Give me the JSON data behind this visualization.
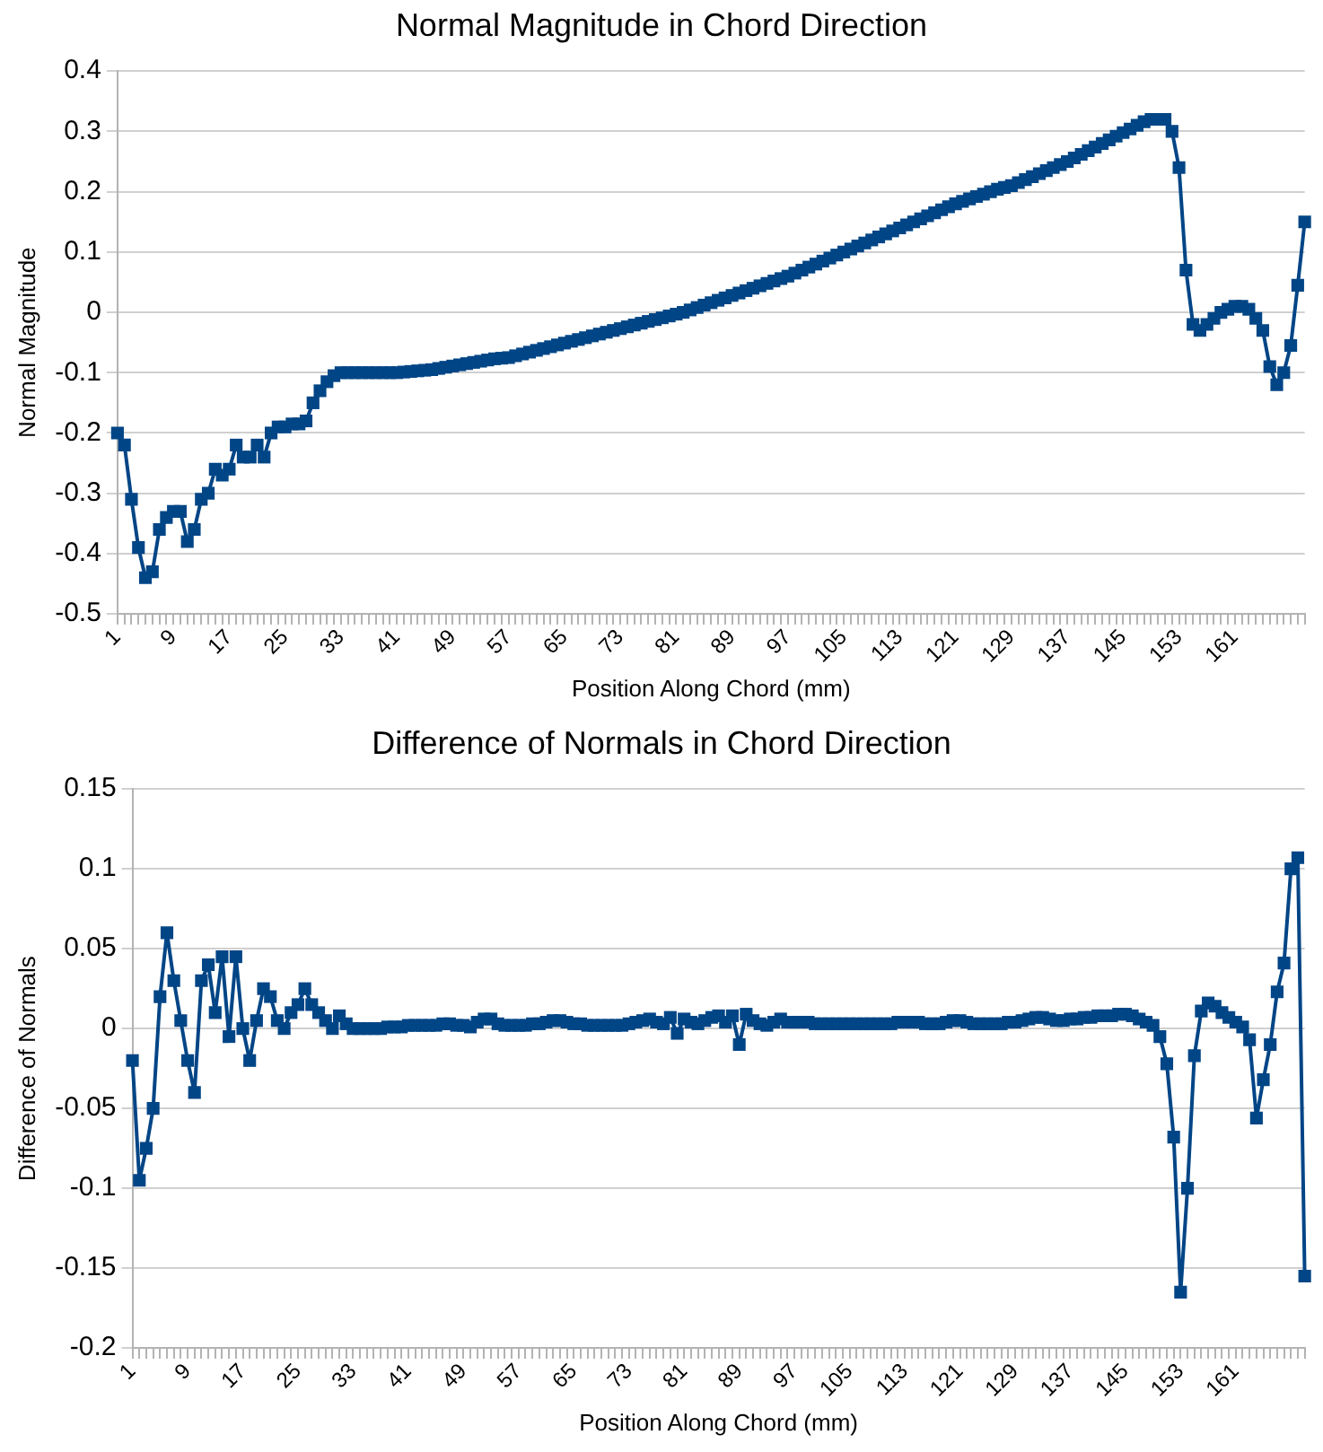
{
  "chart_data": [
    {
      "type": "line",
      "title": "Normal Magnitude in Chord Direction",
      "xlabel": "Position Along Chord (mm)",
      "ylabel": "Normal Magnitude",
      "grid": "y",
      "marker": "square",
      "legend": false,
      "categories": [
        "1",
        null,
        null,
        null,
        null,
        null,
        null,
        null,
        "9",
        null,
        null,
        null,
        null,
        null,
        null,
        null,
        "17",
        null,
        null,
        null,
        null,
        null,
        null,
        null,
        "25",
        null,
        null,
        null,
        null,
        null,
        null,
        null,
        "33",
        null,
        null,
        null,
        null,
        null,
        null,
        null,
        "41",
        null,
        null,
        null,
        null,
        null,
        null,
        null,
        "49",
        null,
        null,
        null,
        null,
        null,
        null,
        null,
        "57",
        null,
        null,
        null,
        null,
        null,
        null,
        null,
        "65",
        null,
        null,
        null,
        null,
        null,
        null,
        null,
        "73",
        null,
        null,
        null,
        null,
        null,
        null,
        null,
        "81",
        null,
        null,
        null,
        null,
        null,
        null,
        null,
        "89",
        null,
        null,
        null,
        null,
        null,
        null,
        null,
        "97",
        null,
        null,
        null,
        null,
        null,
        null,
        null,
        "105",
        null,
        null,
        null,
        null,
        null,
        null,
        null,
        "113",
        null,
        null,
        null,
        null,
        null,
        null,
        null,
        "121",
        null,
        null,
        null,
        null,
        null,
        null,
        null,
        "129",
        null,
        null,
        null,
        null,
        null,
        null,
        null,
        "137",
        null,
        null,
        null,
        null,
        null,
        null,
        null,
        "145",
        null,
        null,
        null,
        null,
        null,
        null,
        null,
        "153",
        null,
        null,
        null,
        null,
        null,
        null,
        null,
        "161",
        null,
        null,
        null,
        null,
        null,
        null,
        null,
        null,
        null,
        null
      ],
      "ylim": [
        -0.5,
        0.4
      ],
      "yticks": [
        -0.5,
        -0.4,
        -0.3,
        -0.2,
        -0.1,
        0,
        0.1,
        0.2,
        0.3,
        0.4
      ],
      "series": [
        {
          "color": "#004586",
          "values": [
            -0.2,
            -0.22,
            -0.31,
            -0.39,
            -0.44,
            -0.43,
            -0.36,
            -0.34,
            -0.33,
            -0.33,
            -0.38,
            -0.36,
            -0.31,
            -0.3,
            -0.26,
            -0.27,
            -0.26,
            -0.22,
            -0.24,
            -0.24,
            -0.22,
            -0.24,
            -0.2,
            -0.19,
            -0.19,
            -0.185,
            -0.185,
            -0.18,
            -0.15,
            -0.13,
            -0.115,
            -0.105,
            -0.1,
            -0.1,
            -0.1,
            -0.1,
            -0.1,
            -0.1,
            -0.1,
            -0.1,
            -0.1,
            -0.099,
            -0.098,
            -0.097,
            -0.096,
            -0.095,
            -0.093,
            -0.091,
            -0.089,
            -0.087,
            -0.085,
            -0.083,
            -0.081,
            -0.079,
            -0.077,
            -0.076,
            -0.075,
            -0.072,
            -0.069,
            -0.066,
            -0.063,
            -0.06,
            -0.057,
            -0.054,
            -0.051,
            -0.048,
            -0.045,
            -0.042,
            -0.039,
            -0.036,
            -0.033,
            -0.03,
            -0.027,
            -0.024,
            -0.021,
            -0.018,
            -0.015,
            -0.012,
            -0.009,
            -0.006,
            -0.003,
            0,
            0.004,
            0.008,
            0.012,
            0.016,
            0.02,
            0.024,
            0.028,
            0.032,
            0.036,
            0.04,
            0.044,
            0.048,
            0.052,
            0.056,
            0.06,
            0.065,
            0.07,
            0.075,
            0.08,
            0.085,
            0.09,
            0.095,
            0.1,
            0.105,
            0.11,
            0.115,
            0.12,
            0.125,
            0.13,
            0.135,
            0.14,
            0.145,
            0.15,
            0.155,
            0.16,
            0.165,
            0.17,
            0.175,
            0.18,
            0.184,
            0.188,
            0.192,
            0.196,
            0.2,
            0.204,
            0.207,
            0.21,
            0.215,
            0.22,
            0.225,
            0.23,
            0.235,
            0.24,
            0.245,
            0.25,
            0.256,
            0.262,
            0.268,
            0.274,
            0.28,
            0.286,
            0.292,
            0.298,
            0.304,
            0.31,
            0.316,
            0.32,
            0.32,
            0.32,
            0.3,
            0.24,
            0.07,
            -0.02,
            -0.03,
            -0.02,
            -0.01,
            0,
            0.005,
            0.01,
            0.01,
            0.005,
            -0.01,
            -0.03,
            -0.09,
            -0.12,
            -0.1,
            -0.055,
            0.045,
            0.15
          ]
        }
      ]
    },
    {
      "type": "line",
      "title": "Difference of Normals in Chord Direction",
      "xlabel": "Position Along Chord (mm)",
      "ylabel": "Difference of Normals",
      "grid": "y",
      "marker": "square",
      "legend": false,
      "categories": [
        "1",
        null,
        null,
        null,
        null,
        null,
        null,
        null,
        "9",
        null,
        null,
        null,
        null,
        null,
        null,
        null,
        "17",
        null,
        null,
        null,
        null,
        null,
        null,
        null,
        "25",
        null,
        null,
        null,
        null,
        null,
        null,
        null,
        "33",
        null,
        null,
        null,
        null,
        null,
        null,
        null,
        "41",
        null,
        null,
        null,
        null,
        null,
        null,
        null,
        "49",
        null,
        null,
        null,
        null,
        null,
        null,
        null,
        "57",
        null,
        null,
        null,
        null,
        null,
        null,
        null,
        "65",
        null,
        null,
        null,
        null,
        null,
        null,
        null,
        "73",
        null,
        null,
        null,
        null,
        null,
        null,
        null,
        "81",
        null,
        null,
        null,
        null,
        null,
        null,
        null,
        "89",
        null,
        null,
        null,
        null,
        null,
        null,
        null,
        "97",
        null,
        null,
        null,
        null,
        null,
        null,
        null,
        "105",
        null,
        null,
        null,
        null,
        null,
        null,
        null,
        "113",
        null,
        null,
        null,
        null,
        null,
        null,
        null,
        "121",
        null,
        null,
        null,
        null,
        null,
        null,
        null,
        "129",
        null,
        null,
        null,
        null,
        null,
        null,
        null,
        "137",
        null,
        null,
        null,
        null,
        null,
        null,
        null,
        "145",
        null,
        null,
        null,
        null,
        null,
        null,
        null,
        "153",
        null,
        null,
        null,
        null,
        null,
        null,
        null,
        "161",
        null,
        null,
        null,
        null,
        null,
        null,
        null,
        null,
        null,
        null
      ],
      "ylim": [
        -0.2,
        0.15
      ],
      "yticks": [
        -0.2,
        -0.15,
        -0.1,
        -0.05,
        0,
        0.05,
        0.1,
        0.15
      ],
      "series": [
        {
          "color": "#004586",
          "values": [
            -0.02,
            -0.095,
            -0.075,
            -0.05,
            0.02,
            0.06,
            0.03,
            0.005,
            -0.02,
            -0.04,
            0.03,
            0.04,
            0.01,
            0.045,
            -0.005,
            0.045,
            0,
            -0.02,
            0.005,
            0.025,
            0.02,
            0.005,
            0,
            0.01,
            0.015,
            0.025,
            0.015,
            0.01,
            0.005,
            0,
            0.008,
            0.003,
            0,
            0,
            0,
            0,
            0,
            0.001,
            0.001,
            0.001,
            0.002,
            0.002,
            0.002,
            0.002,
            0.002,
            0.003,
            0.003,
            0.002,
            0.002,
            0.001,
            0.004,
            0.006,
            0.006,
            0.003,
            0.002,
            0.002,
            0.002,
            0.002,
            0.003,
            0.003,
            0.004,
            0.005,
            0.005,
            0.004,
            0.003,
            0.003,
            0.002,
            0.002,
            0.002,
            0.002,
            0.002,
            0.002,
            0.003,
            0.004,
            0.005,
            0.006,
            0.004,
            0.003,
            0.007,
            -0.003,
            0.006,
            0.004,
            0.003,
            0.005,
            0.007,
            0.008,
            0.004,
            0.008,
            -0.01,
            0.009,
            0.005,
            0.003,
            0.002,
            0.004,
            0.006,
            0.004,
            0.004,
            0.004,
            0.004,
            0.003,
            0.003,
            0.003,
            0.003,
            0.003,
            0.003,
            0.003,
            0.003,
            0.003,
            0.003,
            0.003,
            0.003,
            0.004,
            0.004,
            0.004,
            0.004,
            0.003,
            0.003,
            0.003,
            0.004,
            0.005,
            0.005,
            0.004,
            0.003,
            0.003,
            0.003,
            0.003,
            0.003,
            0.004,
            0.004,
            0.005,
            0.006,
            0.007,
            0.007,
            0.006,
            0.005,
            0.005,
            0.006,
            0.006,
            0.007,
            0.007,
            0.008,
            0.008,
            0.008,
            0.009,
            0.009,
            0.008,
            0.006,
            0.004,
            0.002,
            -0.005,
            -0.022,
            -0.068,
            -0.165,
            -0.1,
            -0.017,
            0.011,
            0.016,
            0.014,
            0.01,
            0.007,
            0.004,
            0.001,
            -0.007,
            -0.056,
            -0.032,
            -0.01,
            0.023,
            0.041,
            0.1,
            0.107,
            -0.155
          ]
        }
      ]
    }
  ]
}
